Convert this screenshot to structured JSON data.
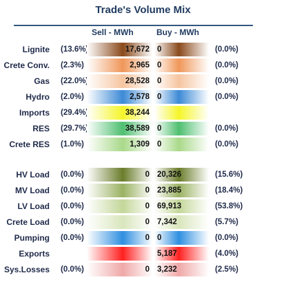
{
  "title": "Trade's Volume Mix",
  "headers": {
    "sell": "Sell - MWh",
    "buy": "Buy - MWh"
  },
  "rows": [
    {
      "label": "Lignite",
      "sell_pct": "(13.6%)",
      "sell": "17,672",
      "buy": "0",
      "buy_pct": "(0.0%)",
      "sell_color": "#8a4a1c",
      "buy_color": "#8a4a1c"
    },
    {
      "label": "Crete Conv.",
      "sell_pct": "(2.3%)",
      "sell": "2,965",
      "buy": "0",
      "buy_pct": "(0.0%)",
      "sell_color": "#f0975a",
      "buy_color": "#f0975a"
    },
    {
      "label": "Gas",
      "sell_pct": "(22.0%)",
      "sell": "28,528",
      "buy": "0",
      "buy_pct": "(0.0%)",
      "sell_color": "#f6c5a0",
      "buy_color": "#f6c5a0"
    },
    {
      "label": "Hydro",
      "sell_pct": "(2.0%)",
      "sell": "2,578",
      "buy": "0",
      "buy_pct": "(0.0%)",
      "sell_color": "#3d8ad6",
      "buy_color": "#3d8ad6"
    },
    {
      "label": "Imports",
      "sell_pct": "(29.4%)",
      "sell": "38,244",
      "buy": "",
      "buy_pct": "",
      "sell_color": "#f5f52a",
      "buy_color": "#f5f52a"
    },
    {
      "label": "RES",
      "sell_pct": "(29.7%)",
      "sell": "38,589",
      "buy": "0",
      "buy_pct": "(0.0%)",
      "sell_color": "#4fbf70",
      "buy_color": "#4fbf70"
    },
    {
      "label": "Crete RES",
      "sell_pct": "(1.0%)",
      "sell": "1,309",
      "buy": "0",
      "buy_pct": "(0.0%)",
      "sell_color": "#a9d98a",
      "buy_color": "#a9d98a"
    },
    {
      "label": "HV Load",
      "sell_pct": "(0.0%)",
      "sell": "0",
      "buy": "20,326",
      "buy_pct": "(15.6%)",
      "sell_color": "#6b7d2c",
      "buy_color": "#6b7d2c"
    },
    {
      "label": "MV Load",
      "sell_pct": "(0.0%)",
      "sell": "0",
      "buy": "23,885",
      "buy_pct": "(18.4%)",
      "sell_color": "#9bb263",
      "buy_color": "#9bb263"
    },
    {
      "label": "LV Load",
      "sell_pct": "(0.0%)",
      "sell": "0",
      "buy": "69,913",
      "buy_pct": "(53.8%)",
      "sell_color": "#c4d79a",
      "buy_color": "#c4d79a"
    },
    {
      "label": "Crete Load",
      "sell_pct": "(0.0%)",
      "sell": "0",
      "buy": "7,342",
      "buy_pct": "(5.7%)",
      "sell_color": "#d9e6bd",
      "buy_color": "#d9e6bd"
    },
    {
      "label": "Pumping",
      "sell_pct": "(0.0%)",
      "sell": "0",
      "buy": "0",
      "buy_pct": "(0.0%)",
      "sell_color": "#2f8fe0",
      "buy_color": "#2f8fe0"
    },
    {
      "label": "Exports",
      "sell_pct": "",
      "sell": "",
      "buy": "5,187",
      "buy_pct": "(4.0%)",
      "sell_color": "#ff2020",
      "buy_color": "#ff2020"
    },
    {
      "label": "Sys.Losses",
      "sell_pct": "(0.0%)",
      "sell": "0",
      "buy": "3,232",
      "buy_pct": "(2.5%)",
      "sell_color": "#f0a8a8",
      "buy_color": "#f0a8a8"
    }
  ]
}
